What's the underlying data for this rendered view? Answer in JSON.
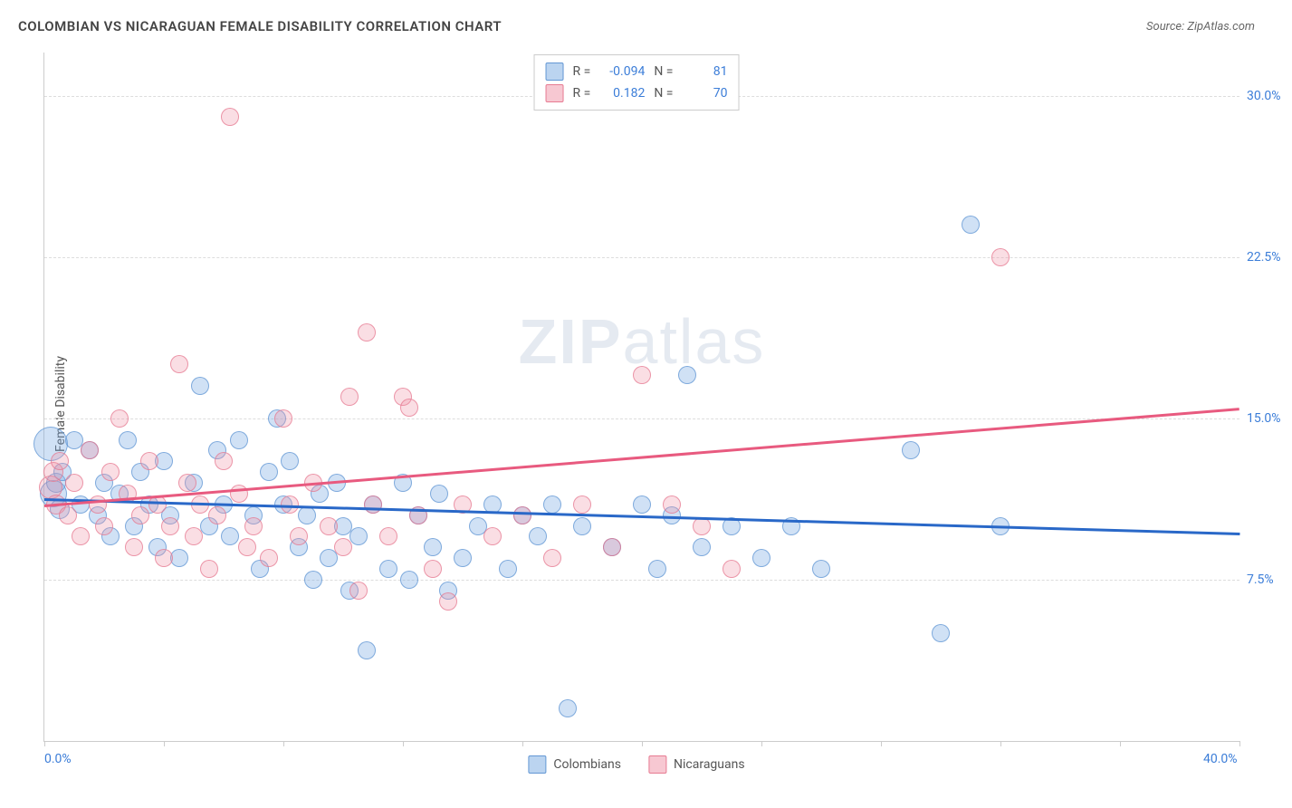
{
  "title": "COLOMBIAN VS NICARAGUAN FEMALE DISABILITY CORRELATION CHART",
  "source": "Source: ZipAtlas.com",
  "y_axis_title": "Female Disability",
  "watermark_bold": "ZIP",
  "watermark_rest": "atlas",
  "chart": {
    "type": "scatter",
    "xlim": [
      0,
      40
    ],
    "ylim": [
      0,
      32
    ],
    "background_color": "#ffffff",
    "grid_color": "#dddddd",
    "axis_color": "#cccccc",
    "point_radius": 9,
    "y_gridlines": [
      {
        "value": 7.5,
        "label": "7.5%"
      },
      {
        "value": 15.0,
        "label": "15.0%"
      },
      {
        "value": 22.5,
        "label": "22.5%"
      },
      {
        "value": 30.0,
        "label": "30.0%"
      }
    ],
    "x_ticks": [
      0,
      4,
      8,
      12,
      16,
      20,
      24,
      28,
      32,
      36,
      40
    ],
    "x_labels": [
      {
        "value": 0,
        "label": "0.0%"
      },
      {
        "value": 40,
        "label": "40.0%"
      }
    ],
    "series": [
      {
        "name": "Colombians",
        "color_fill": "rgba(120,170,225,0.35)",
        "color_stroke": "rgba(90,145,210,0.7)",
        "trend_color": "#2968c8",
        "R": "-0.094",
        "N": "81",
        "trend": {
          "x1": 0,
          "y1": 11.3,
          "x2": 40,
          "y2": 9.7
        },
        "points": [
          [
            0.2,
            13.8,
            18
          ],
          [
            0.3,
            11.5,
            14
          ],
          [
            0.4,
            12.0,
            10
          ],
          [
            0.5,
            10.8,
            10
          ],
          [
            0.6,
            12.5,
            9
          ],
          [
            1.0,
            14.0,
            9
          ],
          [
            1.2,
            11.0,
            9
          ],
          [
            1.5,
            13.5,
            9
          ],
          [
            1.8,
            10.5,
            9
          ],
          [
            2.0,
            12.0,
            9
          ],
          [
            2.2,
            9.5,
            9
          ],
          [
            2.5,
            11.5,
            9
          ],
          [
            2.8,
            14.0,
            9
          ],
          [
            3.0,
            10.0,
            9
          ],
          [
            3.2,
            12.5,
            9
          ],
          [
            3.5,
            11.0,
            9
          ],
          [
            3.8,
            9.0,
            9
          ],
          [
            4.0,
            13.0,
            9
          ],
          [
            4.2,
            10.5,
            9
          ],
          [
            4.5,
            8.5,
            9
          ],
          [
            5.0,
            12.0,
            9
          ],
          [
            5.2,
            16.5,
            9
          ],
          [
            5.5,
            10.0,
            9
          ],
          [
            5.8,
            13.5,
            9
          ],
          [
            6.0,
            11.0,
            9
          ],
          [
            6.2,
            9.5,
            9
          ],
          [
            6.5,
            14.0,
            9
          ],
          [
            7.0,
            10.5,
            9
          ],
          [
            7.2,
            8.0,
            9
          ],
          [
            7.5,
            12.5,
            9
          ],
          [
            7.8,
            15.0,
            9
          ],
          [
            8.0,
            11.0,
            9
          ],
          [
            8.2,
            13.0,
            9
          ],
          [
            8.5,
            9.0,
            9
          ],
          [
            8.8,
            10.5,
            9
          ],
          [
            9.0,
            7.5,
            9
          ],
          [
            9.2,
            11.5,
            9
          ],
          [
            9.5,
            8.5,
            9
          ],
          [
            9.8,
            12.0,
            9
          ],
          [
            10.0,
            10.0,
            9
          ],
          [
            10.2,
            7.0,
            9
          ],
          [
            10.5,
            9.5,
            9
          ],
          [
            10.8,
            4.2,
            9
          ],
          [
            11.0,
            11.0,
            9
          ],
          [
            11.5,
            8.0,
            9
          ],
          [
            12.0,
            12.0,
            9
          ],
          [
            12.2,
            7.5,
            9
          ],
          [
            12.5,
            10.5,
            9
          ],
          [
            13.0,
            9.0,
            9
          ],
          [
            13.2,
            11.5,
            9
          ],
          [
            13.5,
            7.0,
            9
          ],
          [
            14.0,
            8.5,
            9
          ],
          [
            14.5,
            10.0,
            9
          ],
          [
            15.0,
            11.0,
            9
          ],
          [
            15.5,
            8.0,
            9
          ],
          [
            16.0,
            10.5,
            9
          ],
          [
            16.5,
            9.5,
            9
          ],
          [
            17.0,
            11.0,
            9
          ],
          [
            17.5,
            1.5,
            9
          ],
          [
            18.0,
            10.0,
            9
          ],
          [
            19.0,
            9.0,
            9
          ],
          [
            20.0,
            11.0,
            9
          ],
          [
            20.5,
            8.0,
            9
          ],
          [
            21.0,
            10.5,
            9
          ],
          [
            21.5,
            17.0,
            9
          ],
          [
            22.0,
            9.0,
            9
          ],
          [
            23.0,
            10.0,
            9
          ],
          [
            24.0,
            8.5,
            9
          ],
          [
            25.0,
            10.0,
            9
          ],
          [
            26.0,
            8.0,
            9
          ],
          [
            29.0,
            13.5,
            9
          ],
          [
            30.0,
            5.0,
            9
          ],
          [
            31.0,
            24.0,
            9
          ],
          [
            32.0,
            10.0,
            9
          ]
        ]
      },
      {
        "name": "Nicaraguans",
        "color_fill": "rgba(240,145,165,0.3)",
        "color_stroke": "rgba(230,115,140,0.7)",
        "trend_color": "#e85a7f",
        "R": "0.182",
        "N": "70",
        "trend": {
          "x1": 0,
          "y1": 11.0,
          "x2": 40,
          "y2": 15.5
        },
        "points": [
          [
            0.2,
            11.8,
            12
          ],
          [
            0.3,
            12.5,
            10
          ],
          [
            0.4,
            11.0,
            10
          ],
          [
            0.5,
            13.0,
            9
          ],
          [
            0.8,
            10.5,
            9
          ],
          [
            1.0,
            12.0,
            9
          ],
          [
            1.2,
            9.5,
            9
          ],
          [
            1.5,
            13.5,
            9
          ],
          [
            1.8,
            11.0,
            9
          ],
          [
            2.0,
            10.0,
            9
          ],
          [
            2.2,
            12.5,
            9
          ],
          [
            2.5,
            15.0,
            9
          ],
          [
            2.8,
            11.5,
            9
          ],
          [
            3.0,
            9.0,
            9
          ],
          [
            3.2,
            10.5,
            9
          ],
          [
            3.5,
            13.0,
            9
          ],
          [
            3.8,
            11.0,
            9
          ],
          [
            4.0,
            8.5,
            9
          ],
          [
            4.2,
            10.0,
            9
          ],
          [
            4.5,
            17.5,
            9
          ],
          [
            4.8,
            12.0,
            9
          ],
          [
            5.0,
            9.5,
            9
          ],
          [
            5.2,
            11.0,
            9
          ],
          [
            5.5,
            8.0,
            9
          ],
          [
            5.8,
            10.5,
            9
          ],
          [
            6.0,
            13.0,
            9
          ],
          [
            6.2,
            29.0,
            9
          ],
          [
            6.5,
            11.5,
            9
          ],
          [
            6.8,
            9.0,
            9
          ],
          [
            7.0,
            10.0,
            9
          ],
          [
            7.5,
            8.5,
            9
          ],
          [
            8.0,
            15.0,
            9
          ],
          [
            8.2,
            11.0,
            9
          ],
          [
            8.5,
            9.5,
            9
          ],
          [
            9.0,
            12.0,
            9
          ],
          [
            9.5,
            10.0,
            9
          ],
          [
            10.0,
            9.0,
            9
          ],
          [
            10.2,
            16.0,
            9
          ],
          [
            10.5,
            7.0,
            9
          ],
          [
            10.8,
            19.0,
            9
          ],
          [
            11.0,
            11.0,
            9
          ],
          [
            11.5,
            9.5,
            9
          ],
          [
            12.0,
            16.0,
            9
          ],
          [
            12.2,
            15.5,
            9
          ],
          [
            12.5,
            10.5,
            9
          ],
          [
            13.0,
            8.0,
            9
          ],
          [
            13.5,
            6.5,
            9
          ],
          [
            14.0,
            11.0,
            9
          ],
          [
            15.0,
            9.5,
            9
          ],
          [
            16.0,
            10.5,
            9
          ],
          [
            17.0,
            8.5,
            9
          ],
          [
            18.0,
            11.0,
            9
          ],
          [
            19.0,
            9.0,
            9
          ],
          [
            20.0,
            17.0,
            9
          ],
          [
            21.0,
            11.0,
            9
          ],
          [
            22.0,
            10.0,
            9
          ],
          [
            23.0,
            8.0,
            9
          ],
          [
            32.0,
            22.5,
            9
          ]
        ]
      }
    ]
  },
  "legend_bottom": [
    {
      "label": "Colombians",
      "swatch": "blue"
    },
    {
      "label": "Nicaraguans",
      "swatch": "pink"
    }
  ]
}
